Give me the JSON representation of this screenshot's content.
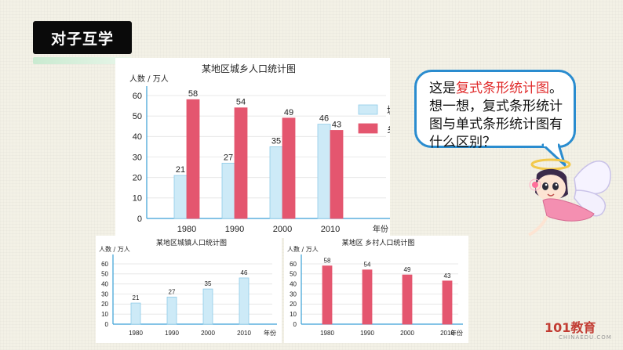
{
  "header": {
    "badge": "对子互学"
  },
  "bubble": {
    "prefix": "这是",
    "highlight": "复式条形统计图",
    "line1_end": "。",
    "rest": "想一想，复式条形统计图与单式条形统计图有什么区别？"
  },
  "logo": {
    "mark": "101教育",
    "sub": "CHINAEDU.COM"
  },
  "colors": {
    "urban": "#cdeaf7",
    "urban_stroke": "#8fcbe8",
    "rural": "#e4566f",
    "accent_red": "#e02a2a",
    "bubble_border": "#2a8ccf"
  },
  "chart_data": [
    {
      "type": "bar",
      "title": "某地区城乡人口统计图",
      "ylabel": "人数 / 万人",
      "xlabel": "年份",
      "categories": [
        "1980",
        "1990",
        "2000",
        "2010"
      ],
      "ylim": [
        0,
        60
      ],
      "yticks": [
        0,
        10,
        20,
        30,
        40,
        50,
        60
      ],
      "legend": "right",
      "series": [
        {
          "name": "城镇",
          "values": [
            21,
            27,
            35,
            46
          ]
        },
        {
          "name": "乡村",
          "values": [
            58,
            54,
            49,
            43
          ]
        }
      ]
    },
    {
      "type": "bar",
      "title": "某地区城镇人口统计图",
      "ylabel": "人数 / 万人",
      "xlabel": "年份",
      "categories": [
        "1980",
        "1990",
        "2000",
        "2010"
      ],
      "ylim": [
        0,
        60
      ],
      "yticks": [
        0,
        10,
        20,
        30,
        40,
        50,
        60
      ],
      "values": [
        21,
        27,
        35,
        46
      ]
    },
    {
      "type": "bar",
      "title": "某地区 乡村人口统计图",
      "ylabel": "人数 / 万人",
      "xlabel": "年份",
      "categories": [
        "1980",
        "1990",
        "2000",
        "2010"
      ],
      "ylim": [
        0,
        60
      ],
      "yticks": [
        0,
        10,
        20,
        30,
        40,
        50,
        60
      ],
      "values": [
        58,
        54,
        49,
        43
      ]
    }
  ]
}
